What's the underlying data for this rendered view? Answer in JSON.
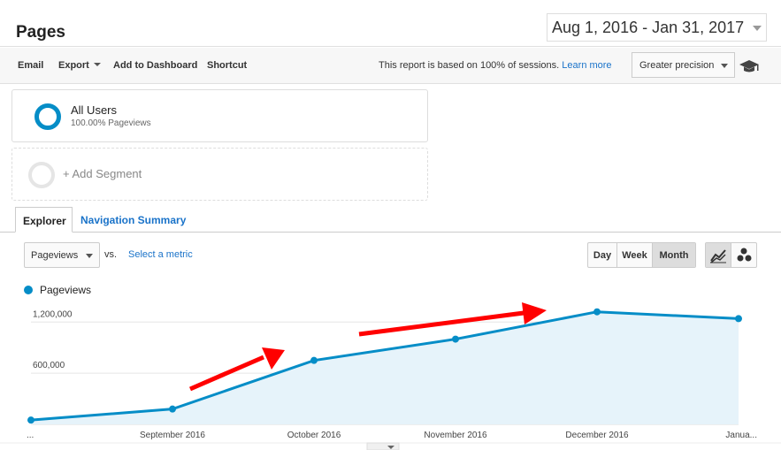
{
  "header": {
    "title": "Pages",
    "date_range": "Aug 1, 2016 - Jan 31, 2017"
  },
  "toolbar": {
    "email": "Email",
    "export": "Export",
    "add_to_dashboard": "Add to Dashboard",
    "shortcut": "Shortcut",
    "report_note": "This report is based on 100% of sessions.",
    "learn_more": "Learn more",
    "precision": "Greater precision",
    "cap_icon": "graduation-cap-icon"
  },
  "segments": {
    "all_users": "All Users",
    "all_users_sub": "100.00% Pageviews",
    "add_segment": "+ Add Segment"
  },
  "tabs": {
    "explorer": "Explorer",
    "navigation_summary": "Navigation Summary"
  },
  "controls": {
    "metric": "Pageviews",
    "vs": "vs.",
    "select_metric": "Select a metric",
    "day": "Day",
    "week": "Week",
    "month": "Month"
  },
  "colors": {
    "series": "#058dc7",
    "fill": "#e6f3fa",
    "annotation": "#ff0000",
    "link": "#1a73c9"
  },
  "chart_data": {
    "type": "area",
    "series_name": "Pageviews",
    "x_labels": [
      "...",
      "September 2016",
      "October 2016",
      "November 2016",
      "December 2016",
      "Janua..."
    ],
    "values": [
      50000,
      180000,
      750000,
      1000000,
      1320000,
      1240000
    ],
    "y_ticks": [
      {
        "value": 600000,
        "label": "600,000"
      },
      {
        "value": 1200000,
        "label": "1,200,000"
      }
    ],
    "ylim": [
      0,
      1400000
    ],
    "grid": true,
    "legend_placement": "top-left"
  }
}
